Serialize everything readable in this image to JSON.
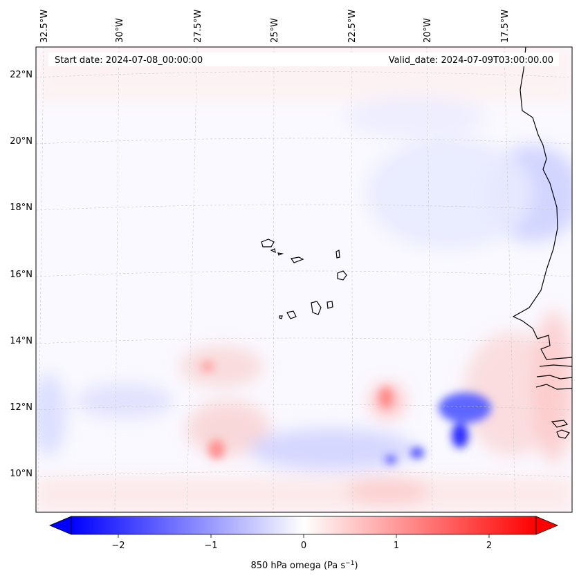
{
  "map": {
    "start_label": "Start date: 2024-07-08_00:00:00",
    "valid_label": "Valid_date: 2024-07-09T03:00:00.00",
    "lon_labels": [
      "32.5°W",
      "30°W",
      "27.5°W",
      "25°W",
      "22.5°W",
      "20°W",
      "17.5°W"
    ],
    "lat_labels": [
      "22°N",
      "20°N",
      "18°N",
      "16°N",
      "14°N",
      "12°N",
      "10°N"
    ],
    "coastline_color": "#000000"
  },
  "colorbar": {
    "label_prefix": "850 hPa omega (Pa s",
    "label_exp": "−1",
    "label_suffix": ")",
    "ticks": [
      "−2",
      "−1",
      "0",
      "1",
      "2"
    ],
    "min_color": "#0000ff",
    "max_color": "#ff0000"
  }
}
